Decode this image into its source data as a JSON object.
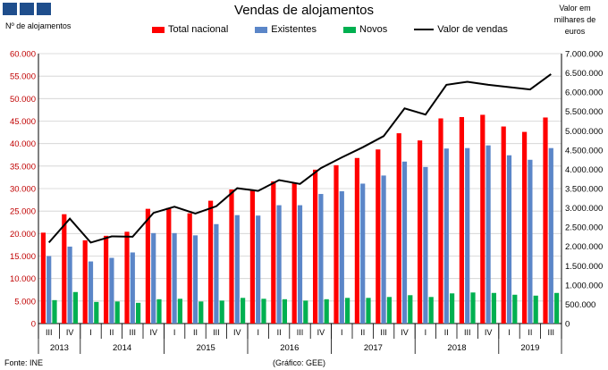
{
  "title": "Vendas de alojamentos",
  "left_axis_label": "Nº de alojamentos",
  "right_axis_label": "Valor em milhares de euros",
  "source": "Fonte: INE",
  "credit": "(Gráfico: GEE)",
  "colors": {
    "total": "#ff0000",
    "existentes": "#5b86c8",
    "novos": "#00b050",
    "valor": "#000000"
  },
  "chart_data": {
    "type": "bar",
    "title": "Vendas de alojamentos",
    "categories": [
      "III",
      "IV",
      "I",
      "II",
      "III",
      "IV",
      "I",
      "II",
      "III",
      "IV",
      "I",
      "II",
      "III",
      "IV",
      "I",
      "II",
      "III",
      "IV",
      "I",
      "II",
      "III",
      "IV",
      "I",
      "II",
      "III"
    ],
    "years": [
      {
        "label": "2013",
        "span": 2
      },
      {
        "label": "2014",
        "span": 4
      },
      {
        "label": "2015",
        "span": 4
      },
      {
        "label": "2016",
        "span": 4
      },
      {
        "label": "2017",
        "span": 4
      },
      {
        "label": "2018",
        "span": 4
      },
      {
        "label": "2019",
        "span": 3
      }
    ],
    "series": [
      {
        "name": "Total nacional",
        "values": [
          20200,
          24300,
          18500,
          19500,
          20400,
          25500,
          25700,
          24500,
          27300,
          29800,
          29600,
          31600,
          31200,
          34200,
          35200,
          36800,
          38700,
          42300,
          40700,
          45600,
          45900,
          46400,
          43800,
          42600,
          45800
        ]
      },
      {
        "name": "Existentes",
        "values": [
          15000,
          17100,
          13800,
          14600,
          15800,
          20100,
          20100,
          19600,
          22100,
          24100,
          24000,
          26300,
          26300,
          28800,
          29400,
          31100,
          32900,
          36000,
          34800,
          38900,
          39000,
          39600,
          37400,
          36400,
          39000
        ]
      },
      {
        "name": "Novos",
        "values": [
          5200,
          7000,
          4800,
          4900,
          4600,
          5400,
          5500,
          4900,
          5100,
          5700,
          5500,
          5400,
          5100,
          5400,
          5700,
          5700,
          5900,
          6300,
          5900,
          6700,
          6900,
          6800,
          6400,
          6200,
          6800
        ]
      },
      {
        "name": "Valor de vendas",
        "axis": "right",
        "values": [
          2100000,
          2720000,
          2100000,
          2260000,
          2250000,
          2870000,
          3030000,
          2850000,
          3040000,
          3510000,
          3440000,
          3720000,
          3620000,
          4030000,
          4310000,
          4570000,
          4860000,
          5580000,
          5420000,
          6190000,
          6270000,
          6190000,
          6130000,
          6070000,
          6470000
        ]
      }
    ],
    "ylim": [
      0,
      60000
    ],
    "yticks": [
      "0",
      "5.000",
      "10.000",
      "15.000",
      "20.000",
      "25.000",
      "30.000",
      "35.000",
      "40.000",
      "45.000",
      "50.000",
      "55.000",
      "60.000"
    ],
    "y2lim": [
      0,
      7000000
    ],
    "y2ticks": [
      "0",
      "500.000",
      "1.000.000",
      "1.500.000",
      "2.000.000",
      "2.500.000",
      "3.000.000",
      "3.500.000",
      "4.000.000",
      "4.500.000",
      "5.000.000",
      "5.500.000",
      "6.000.000",
      "6.500.000",
      "7.000.000"
    ],
    "grid": true,
    "legend": "top"
  }
}
